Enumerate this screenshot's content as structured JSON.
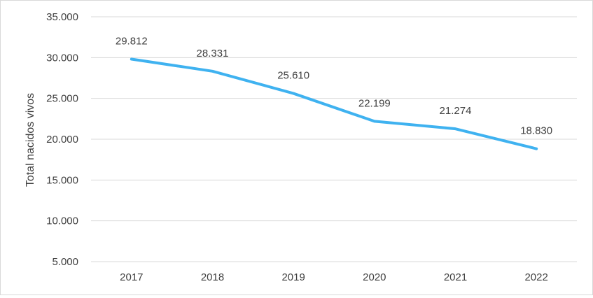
{
  "chart_data": {
    "type": "line",
    "categories": [
      "2017",
      "2018",
      "2019",
      "2020",
      "2021",
      "2022"
    ],
    "values": [
      29812,
      28331,
      25610,
      22199,
      21274,
      18830
    ],
    "data_labels": [
      "29.812",
      "28.331",
      "25.610",
      "22.199",
      "21.274",
      "18.830"
    ],
    "title": "",
    "xlabel": "",
    "ylabel": "Total nacidos vivos",
    "ylim": [
      5000,
      35000
    ],
    "yticks": [
      5000,
      10000,
      15000,
      20000,
      25000,
      30000,
      35000
    ],
    "ytick_labels": [
      "5.000",
      "10.000",
      "15.000",
      "20.000",
      "25.000",
      "30.000",
      "35.000"
    ],
    "grid": true,
    "legend": "none",
    "line_color": "#3fb2f0",
    "grid_color": "#d9d9d9",
    "text_color": "#404040"
  }
}
